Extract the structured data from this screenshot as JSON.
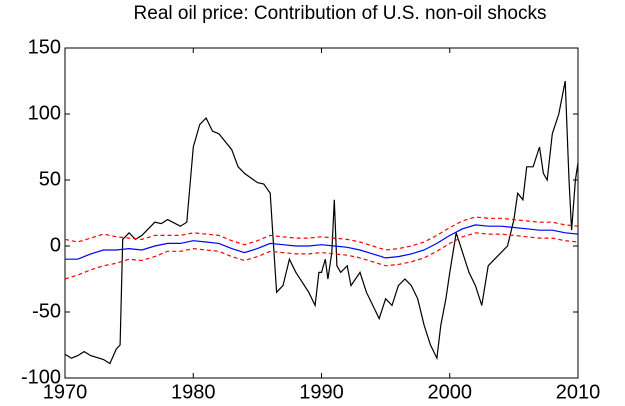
{
  "chart_data": {
    "type": "line",
    "title": "Real oil price: Contribution of U.S. non-oil shocks",
    "xlim": [
      1970,
      2010
    ],
    "xticks": [
      1970,
      1980,
      1990,
      2000,
      2010
    ],
    "ylim": [
      -100,
      150
    ],
    "yticks": [
      -100,
      -50,
      0,
      50,
      100,
      150
    ],
    "grid": false,
    "series": [
      {
        "color": "#000000",
        "linestyle": "solid",
        "x": [
          1970,
          1970.5,
          1971,
          1971.5,
          1972,
          1973,
          1973.5,
          1974,
          1974.3,
          1974.5,
          1975,
          1975.5,
          1976,
          1977,
          1977.5,
          1978,
          1979,
          1979.5,
          1980,
          1980.5,
          1981,
          1981.5,
          1982,
          1983,
          1983.5,
          1984,
          1985,
          1985.5,
          1986,
          1986.3,
          1986.5,
          1987,
          1987.5,
          1988,
          1989,
          1989.5,
          1989.8,
          1990,
          1990.3,
          1990.5,
          1990.8,
          1991,
          1991.2,
          1991.5,
          1992,
          1992.3,
          1993,
          1993.5,
          1994,
          1994.5,
          1995,
          1995.5,
          1996,
          1996.5,
          1997,
          1997.5,
          1998,
          1998.5,
          1999,
          1999.3,
          1999.7,
          2000,
          2000.5,
          2001,
          2001.5,
          2002,
          2002.5,
          2003,
          2003.5,
          2004,
          2004.5,
          2005,
          2005.3,
          2005.7,
          2006,
          2006.5,
          2007,
          2007.3,
          2007.6,
          2008,
          2008.5,
          2009,
          2009.3,
          2009.5,
          2009.8,
          2010
        ],
        "values": [
          -82,
          -85,
          -83,
          -80,
          -83,
          -86,
          -89,
          -78,
          -75,
          5,
          10,
          5,
          8,
          18,
          17,
          20,
          15,
          18,
          75,
          92,
          97,
          87,
          85,
          73,
          60,
          55,
          48,
          47,
          40,
          -5,
          -35,
          -30,
          -10,
          -20,
          -35,
          -45,
          -20,
          -20,
          -10,
          -25,
          -5,
          35,
          -15,
          -20,
          -15,
          -30,
          -20,
          -35,
          -45,
          -55,
          -40,
          -45,
          -30,
          -25,
          -30,
          -40,
          -60,
          -75,
          -85,
          -60,
          -40,
          -20,
          10,
          -5,
          -20,
          -30,
          -45,
          -15,
          -10,
          -5,
          0,
          20,
          40,
          35,
          60,
          60,
          75,
          55,
          50,
          85,
          100,
          125,
          50,
          12,
          50,
          63
        ]
      },
      {
        "color": "#ff0000",
        "linestyle": "dashed",
        "x": [
          1970,
          1971,
          1972,
          1973,
          1974,
          1975,
          1976,
          1977,
          1978,
          1979,
          1980,
          1981,
          1982,
          1983,
          1984,
          1985,
          1986,
          1987,
          1988,
          1989,
          1990,
          1991,
          1992,
          1993,
          1994,
          1995,
          1996,
          1997,
          1998,
          1999,
          2000,
          2001,
          2002,
          2003,
          2004,
          2005,
          2006,
          2007,
          2008,
          2009,
          2010
        ],
        "values": [
          5,
          3,
          6,
          9,
          7,
          6,
          5,
          8,
          8,
          8,
          10,
          9,
          8,
          4,
          1,
          4,
          8,
          7,
          6,
          6,
          7,
          6,
          5,
          3,
          0,
          -3,
          -2,
          0,
          3,
          8,
          14,
          19,
          22,
          21,
          21,
          20,
          19,
          18,
          18,
          16,
          15
        ]
      },
      {
        "color": "#ff0000",
        "linestyle": "dashed",
        "x": [
          1970,
          1971,
          1972,
          1973,
          1974,
          1975,
          1976,
          1977,
          1978,
          1979,
          1980,
          1981,
          1982,
          1983,
          1984,
          1985,
          1986,
          1987,
          1988,
          1989,
          1990,
          1991,
          1992,
          1993,
          1994,
          1995,
          1996,
          1997,
          1998,
          1999,
          2000,
          2001,
          2002,
          2003,
          2004,
          2005,
          2006,
          2007,
          2008,
          2009,
          2010
        ],
        "values": [
          -25,
          -22,
          -18,
          -15,
          -13,
          -10,
          -11,
          -8,
          -4,
          -4,
          -2,
          -3,
          -4,
          -8,
          -11,
          -8,
          -4,
          -5,
          -6,
          -6,
          -5,
          -6,
          -7,
          -9,
          -12,
          -15,
          -14,
          -12,
          -9,
          -4,
          2,
          7,
          10,
          9,
          9,
          8,
          7,
          6,
          6,
          4,
          3
        ]
      },
      {
        "color": "#0000ff",
        "linestyle": "solid",
        "x": [
          1970,
          1971,
          1972,
          1973,
          1974,
          1975,
          1976,
          1977,
          1978,
          1979,
          1980,
          1981,
          1982,
          1983,
          1984,
          1985,
          1986,
          1987,
          1988,
          1989,
          1990,
          1991,
          1992,
          1993,
          1994,
          1995,
          1996,
          1997,
          1998,
          1999,
          2000,
          2001,
          2002,
          2003,
          2004,
          2005,
          2006,
          2007,
          2008,
          2009,
          2010
        ],
        "values": [
          -10,
          -10,
          -6,
          -3,
          -3,
          -2,
          -3,
          0,
          2,
          2,
          4,
          3,
          2,
          -2,
          -5,
          -2,
          2,
          1,
          0,
          0,
          1,
          0,
          -1,
          -3,
          -6,
          -9,
          -8,
          -6,
          -3,
          2,
          8,
          13,
          16,
          15,
          15,
          14,
          13,
          12,
          12,
          10,
          9
        ]
      }
    ]
  }
}
